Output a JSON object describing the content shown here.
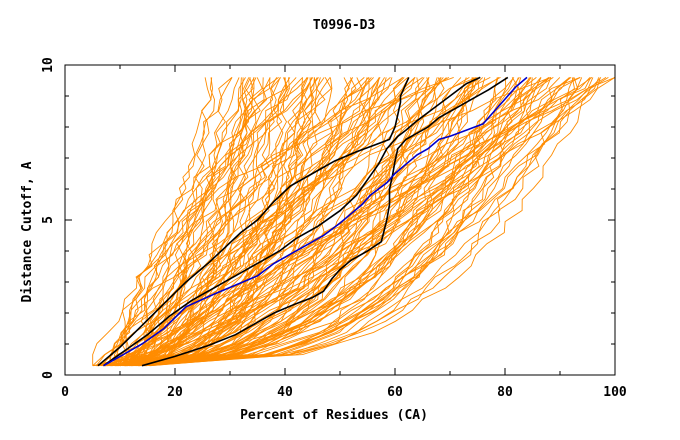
{
  "chart_data": {
    "type": "line",
    "title": "T0996-D3",
    "xlabel": "Percent of Residues (CA)",
    "ylabel": "Distance Cutoff, A",
    "xlim": [
      0,
      100
    ],
    "ylim": [
      0,
      10
    ],
    "x_ticks": [
      "0",
      "20",
      "40",
      "60",
      "80",
      "100"
    ],
    "y_ticks": [
      "0",
      "5",
      "10"
    ],
    "x_tick_values": [
      0,
      20,
      40,
      60,
      80,
      100
    ],
    "y_tick_values": [
      0,
      5,
      10
    ],
    "grid": false,
    "colors": {
      "background_models": "#ff8c00",
      "highlight_black": "#000000",
      "highlight_blue": "#0000cc",
      "frame": "#000000"
    },
    "series": [
      {
        "color": "#000000",
        "x": [
          6,
          10,
          14,
          18,
          22,
          26,
          29,
          32,
          35,
          38,
          41,
          45,
          49,
          53,
          56,
          59,
          60,
          60.5,
          61,
          61,
          61.5,
          62,
          62.5
        ],
        "y": [
          0.3,
          0.9,
          1.6,
          2.3,
          3.0,
          3.6,
          4.1,
          4.6,
          5.0,
          5.6,
          6.1,
          6.5,
          6.9,
          7.2,
          7.4,
          7.6,
          8.0,
          8.4,
          8.8,
          9.0,
          9.2,
          9.4,
          9.6
        ]
      },
      {
        "color": "#000000",
        "x": [
          7,
          11,
          15,
          19,
          23,
          27,
          32,
          36,
          39,
          42,
          46,
          50,
          53,
          55,
          57,
          58.5,
          59.5,
          60.5,
          62,
          64,
          67,
          70,
          73,
          75.5
        ],
        "y": [
          0.3,
          0.8,
          1.3,
          1.9,
          2.4,
          2.8,
          3.3,
          3.7,
          4.0,
          4.4,
          4.8,
          5.3,
          5.8,
          6.3,
          6.8,
          7.3,
          7.5,
          7.7,
          7.9,
          8.2,
          8.6,
          9.0,
          9.4,
          9.6
        ]
      },
      {
        "color": "#000000",
        "x": [
          14,
          20,
          26,
          31,
          35,
          38,
          42,
          45,
          47,
          48.5,
          50,
          52,
          55,
          57.5,
          58.5,
          59,
          59,
          59.5,
          60,
          60.5,
          62,
          64,
          66,
          68,
          71,
          74,
          77,
          80.5
        ],
        "y": [
          0.3,
          0.6,
          0.95,
          1.3,
          1.7,
          2.0,
          2.3,
          2.5,
          2.7,
          3.1,
          3.4,
          3.7,
          4.0,
          4.3,
          5.0,
          5.5,
          6.0,
          6.4,
          6.9,
          7.3,
          7.6,
          7.8,
          8.0,
          8.3,
          8.6,
          8.9,
          9.2,
          9.6
        ]
      },
      {
        "color": "#0000cc",
        "x": [
          7,
          10,
          14,
          18,
          22,
          27,
          31,
          35,
          38,
          41,
          44,
          47,
          50,
          52,
          54,
          55.5,
          57,
          58.5,
          60,
          62,
          64,
          66,
          68,
          70,
          73,
          76,
          78,
          80,
          82,
          84
        ],
        "y": [
          0.3,
          0.6,
          1.0,
          1.5,
          2.2,
          2.6,
          2.9,
          3.2,
          3.6,
          3.9,
          4.2,
          4.5,
          4.9,
          5.2,
          5.5,
          5.8,
          6.0,
          6.2,
          6.5,
          6.8,
          7.1,
          7.3,
          7.6,
          7.7,
          7.9,
          8.1,
          8.5,
          8.9,
          9.3,
          9.6
        ]
      }
    ]
  }
}
